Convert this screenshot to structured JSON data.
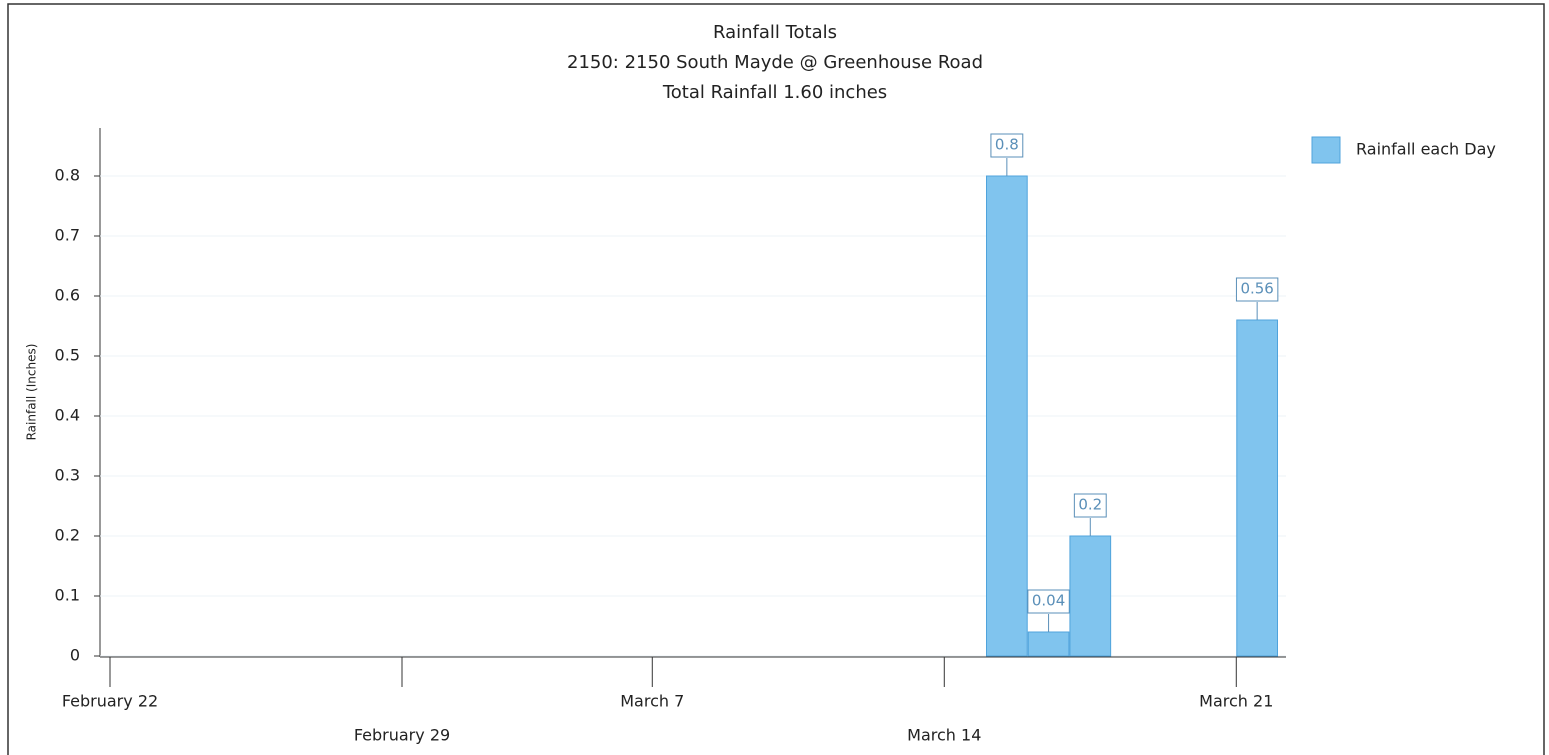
{
  "chart_data": {
    "type": "bar",
    "title": "Rainfall Totals",
    "subtitles": [
      "2150: 2150 South Mayde @ Greenhouse Road",
      "Total Rainfall 1.60 inches"
    ],
    "y_label": "Rainfall (Inches)",
    "x": [
      "March 15",
      "March 16",
      "March 17",
      "March 21"
    ],
    "series": [
      {
        "name": "Rainfall each Day",
        "color": "#80c4ee",
        "values": [
          0.8,
          0.04,
          0.2,
          0.56
        ]
      }
    ],
    "xlim": [
      "February 22",
      "March 22"
    ],
    "xticks": [
      "February 22",
      "February 29",
      "March 7",
      "March 14",
      "March 21"
    ],
    "ylim": [
      0,
      0.88
    ],
    "yticks": [
      0,
      0.1,
      0.2,
      0.3,
      0.4,
      0.5,
      0.6,
      0.7,
      0.8
    ],
    "legend": "top-right"
  }
}
